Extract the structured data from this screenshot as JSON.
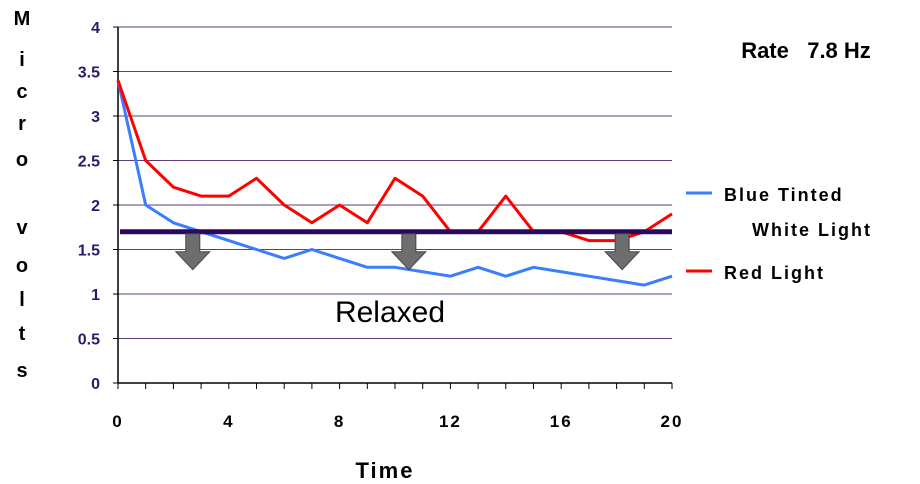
{
  "chart_data": {
    "type": "line",
    "title": "",
    "annotation_rate": "Rate   7.8 Hz",
    "annotation_relaxed": "Relaxed",
    "xlabel": "Time",
    "ylabel_chars": [
      "M",
      "i",
      "c",
      "r",
      "o",
      "",
      "v",
      "o",
      "l",
      "t",
      "s"
    ],
    "xlim": [
      0,
      20
    ],
    "ylim": [
      0,
      4
    ],
    "x_ticks": [
      0,
      4,
      8,
      12,
      16,
      20
    ],
    "y_ticks": [
      "0",
      "0.5",
      "1",
      "1.5",
      "2",
      "2.5",
      "3",
      "3.5",
      "4"
    ],
    "x": [
      0,
      1,
      2,
      3,
      4,
      5,
      6,
      7,
      8,
      9,
      10,
      11,
      12,
      13,
      14,
      15,
      16,
      17,
      18,
      19,
      20
    ],
    "series": [
      {
        "name": "Blue Tinted White Light",
        "legend_lines": [
          "Blue Tinted",
          "White Light"
        ],
        "color": "#3a7dff",
        "values": [
          3.4,
          2.0,
          1.8,
          1.7,
          1.6,
          1.5,
          1.4,
          1.5,
          1.4,
          1.3,
          1.3,
          1.25,
          1.2,
          1.3,
          1.2,
          1.3,
          1.25,
          1.2,
          1.15,
          1.1,
          1.2
        ]
      },
      {
        "name": "Red Light",
        "legend_lines": [
          "Red Light"
        ],
        "color": "#ff0000",
        "values": [
          3.4,
          2.5,
          2.2,
          2.1,
          2.1,
          2.3,
          2.0,
          1.8,
          2.0,
          1.8,
          2.3,
          2.1,
          1.7,
          1.7,
          2.1,
          1.7,
          1.7,
          1.6,
          1.6,
          1.7,
          1.9
        ]
      }
    ],
    "threshold": {
      "value": 1.7,
      "color": "#2b0a5e"
    },
    "down_arrows_x": [
      2.7,
      10.5,
      18.2
    ],
    "gridlines": true,
    "legend_position": "right",
    "colors": {
      "axis_tick_labels": "#2b1a6b",
      "grid": "#5a3d7a",
      "arrow": "#6e6e6e"
    }
  }
}
